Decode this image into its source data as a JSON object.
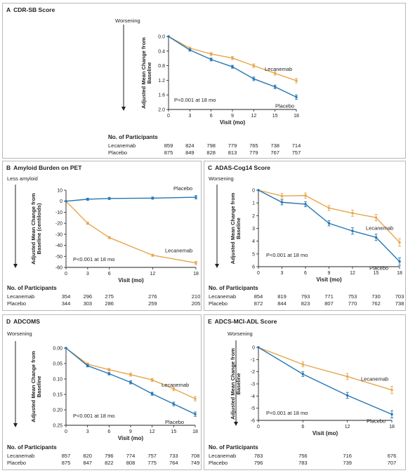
{
  "colors": {
    "lecanemab": "#e8a54b",
    "placebo": "#2476b5",
    "axis": "#222222",
    "panel_border": "#b9b9b9"
  },
  "np_heading": "No. of Participants",
  "panels": {
    "A": {
      "letter": "A",
      "title": "CDR-SB Score",
      "direction_label": "Worsening",
      "ylabel_line1": "Adjusted Mean Change from",
      "ylabel_line2": "Baseline",
      "xlabel": "Visit (mo)",
      "pvalue": "P<0.001 at 18 mo",
      "np": {
        "Lecanemab": [
          "859",
          "824",
          "798",
          "779",
          "765",
          "738",
          "714"
        ],
        "Placebo": [
          "875",
          "849",
          "828",
          "813",
          "779",
          "767",
          "757"
        ]
      }
    },
    "B": {
      "letter": "B",
      "title": "Amyloid Burden on PET",
      "direction_label": "Less amyloid",
      "ylabel_line1": "Adjusted Mean Change from",
      "ylabel_line2": "Baseline (centiloids)",
      "xlabel": "Visit (mo)",
      "pvalue": "P<0.001 at 18 mo",
      "np": {
        "Lecanemab": [
          "354",
          "296",
          "275",
          "276",
          "210"
        ],
        "Placebo": [
          "344",
          "303",
          "286",
          "259",
          "205"
        ]
      }
    },
    "C": {
      "letter": "C",
      "title": "ADAS-Cog14 Score",
      "direction_label": "Worsening",
      "ylabel_line1": "Adjusted Mean Change from",
      "ylabel_line2": "Baseline",
      "xlabel": "Visit (mo)",
      "pvalue": "P<0.001 at 18 mo",
      "np": {
        "Lecanemab": [
          "854",
          "819",
          "793",
          "771",
          "753",
          "730",
          "703"
        ],
        "Placebo": [
          "872",
          "844",
          "823",
          "807",
          "770",
          "762",
          "738"
        ]
      }
    },
    "D": {
      "letter": "D",
      "title": "ADCOMS",
      "direction_label": "Worsening",
      "ylabel_line1": "Adjusted Mean Change from",
      "ylabel_line2": "Baseline",
      "xlabel": "Visit (mo)",
      "pvalue": "P<0.001 at 18 mo",
      "np": {
        "Lecanemab": [
          "857",
          "820",
          "796",
          "774",
          "757",
          "733",
          "708"
        ],
        "Placebo": [
          "875",
          "847",
          "822",
          "808",
          "775",
          "764",
          "749"
        ]
      }
    },
    "E": {
      "letter": "E",
      "title": "ADCS-MCI-ADL Score",
      "direction_label": "Worsening",
      "ylabel_line1": "Adjusted Mean Change from",
      "ylabel_line2": "Baseline",
      "xlabel": "Visit (mo)",
      "pvalue": "P<0.001 at 18 mo",
      "np": {
        "Lecanemab": [
          "783",
          "756",
          "716",
          "676"
        ],
        "Placebo": [
          "796",
          "783",
          "739",
          "707"
        ]
      }
    }
  },
  "chart_data": [
    {
      "panel": "A",
      "type": "line",
      "title": "CDR-SB Score",
      "xlabel": "Visit (mo)",
      "ylabel": "Adjusted Mean Change from Baseline",
      "x": [
        0,
        3,
        6,
        9,
        12,
        15,
        18
      ],
      "xlim": [
        0,
        18
      ],
      "ylim": [
        0,
        2.0
      ],
      "y_inverted": true,
      "yticks": [
        0.0,
        0.4,
        0.8,
        1.2,
        1.6,
        2.0
      ],
      "ytick_labels": [
        "0.0",
        "0.4",
        "0.8",
        "1.2",
        "1.6",
        "2.0"
      ],
      "series": [
        {
          "name": "Lecanemab",
          "values": [
            0,
            0.32,
            0.48,
            0.59,
            0.8,
            1.01,
            1.21
          ],
          "err": [
            0,
            0.03,
            0.04,
            0.04,
            0.05,
            0.05,
            0.06
          ]
        },
        {
          "name": "Placebo",
          "values": [
            0,
            0.37,
            0.63,
            0.83,
            1.16,
            1.38,
            1.66
          ],
          "err": [
            0,
            0.03,
            0.04,
            0.04,
            0.05,
            0.05,
            0.06
          ]
        }
      ],
      "label_positions": "Lecanemab above line near 12-15 mo; Placebo below line near 15 mo"
    },
    {
      "panel": "B",
      "type": "line",
      "title": "Amyloid Burden on PET",
      "xlabel": "Visit (mo)",
      "ylabel": "Adjusted Mean Change from Baseline (centiloids)",
      "x": [
        0,
        3,
        6,
        12,
        18
      ],
      "xlim": [
        0,
        18
      ],
      "ylim": [
        -60,
        10
      ],
      "yticks": [
        10,
        0,
        -10,
        -20,
        -30,
        -40,
        -50,
        -60
      ],
      "ytick_labels": [
        "10",
        "0",
        "-10",
        "-20",
        "-30",
        "-40",
        "-50",
        "-60"
      ],
      "series": [
        {
          "name": "Lecanemab",
          "values": [
            0,
            -20,
            -33,
            -49,
            -56
          ],
          "err": [
            0,
            1.0,
            1.0,
            1.0,
            1.5
          ]
        },
        {
          "name": "Placebo",
          "values": [
            0,
            1.8,
            2.5,
            2.8,
            3.6
          ],
          "err": [
            0,
            1.0,
            1.0,
            1.0,
            1.5
          ]
        }
      ]
    },
    {
      "panel": "C",
      "type": "line",
      "title": "ADAS-Cog14 Score",
      "xlabel": "Visit (mo)",
      "ylabel": "Adjusted Mean Change from Baseline",
      "x": [
        0,
        3,
        6,
        9,
        12,
        15,
        18
      ],
      "xlim": [
        0,
        18
      ],
      "ylim": [
        0,
        6
      ],
      "y_inverted": true,
      "yticks": [
        0,
        1,
        2,
        3,
        4,
        5,
        6
      ],
      "ytick_labels": [
        "0",
        "1",
        "2",
        "3",
        "4",
        "5",
        "6"
      ],
      "series": [
        {
          "name": "Lecanemab",
          "values": [
            0,
            0.45,
            0.42,
            1.4,
            1.8,
            2.15,
            4.1
          ],
          "err": [
            0,
            0.2,
            0.2,
            0.2,
            0.25,
            0.25,
            0.3
          ]
        },
        {
          "name": "Placebo",
          "values": [
            0,
            0.95,
            1.1,
            2.6,
            3.2,
            3.7,
            5.6
          ],
          "err": [
            0,
            0.2,
            0.2,
            0.2,
            0.25,
            0.25,
            0.3
          ]
        }
      ]
    },
    {
      "panel": "D",
      "type": "line",
      "title": "ADCOMS",
      "xlabel": "Visit (mo)",
      "ylabel": "Adjusted Mean Change from Baseline",
      "x": [
        0,
        3,
        6,
        9,
        12,
        15,
        18
      ],
      "xlim": [
        0,
        18
      ],
      "ylim": [
        0,
        0.25
      ],
      "y_inverted": true,
      "yticks": [
        0.0,
        0.05,
        0.1,
        0.15,
        0.2,
        0.25
      ],
      "ytick_labels": [
        "0.00",
        "0.05",
        "0.10",
        "0.15",
        "0.20",
        "0.25"
      ],
      "series": [
        {
          "name": "Lecanemab",
          "values": [
            0,
            0.052,
            0.07,
            0.086,
            0.103,
            0.132,
            0.164
          ],
          "err": [
            0,
            0.004,
            0.004,
            0.005,
            0.005,
            0.006,
            0.007
          ]
        },
        {
          "name": "Placebo",
          "values": [
            0,
            0.057,
            0.083,
            0.111,
            0.148,
            0.181,
            0.214
          ],
          "err": [
            0,
            0.004,
            0.004,
            0.005,
            0.005,
            0.006,
            0.007
          ]
        }
      ]
    },
    {
      "panel": "E",
      "type": "line",
      "title": "ADCS-MCI-ADL Score",
      "xlabel": "Visit (mo)",
      "ylabel": "Adjusted Mean Change from Baseline",
      "x": [
        0,
        6,
        12,
        18
      ],
      "xlim": [
        0,
        18
      ],
      "ylim": [
        -6,
        0
      ],
      "yticks": [
        0,
        -1,
        -2,
        -3,
        -4,
        -5,
        -6
      ],
      "ytick_labels": [
        "0",
        "-1",
        "-2",
        "-3",
        "-4",
        "-5",
        "-6"
      ],
      "series": [
        {
          "name": "Lecanemab",
          "values": [
            0,
            -1.4,
            -2.4,
            -3.5
          ],
          "err": [
            0,
            0.2,
            0.25,
            0.3
          ]
        },
        {
          "name": "Placebo",
          "values": [
            0,
            -2.2,
            -3.95,
            -5.5
          ],
          "err": [
            0,
            0.2,
            0.25,
            0.3
          ]
        }
      ]
    }
  ]
}
